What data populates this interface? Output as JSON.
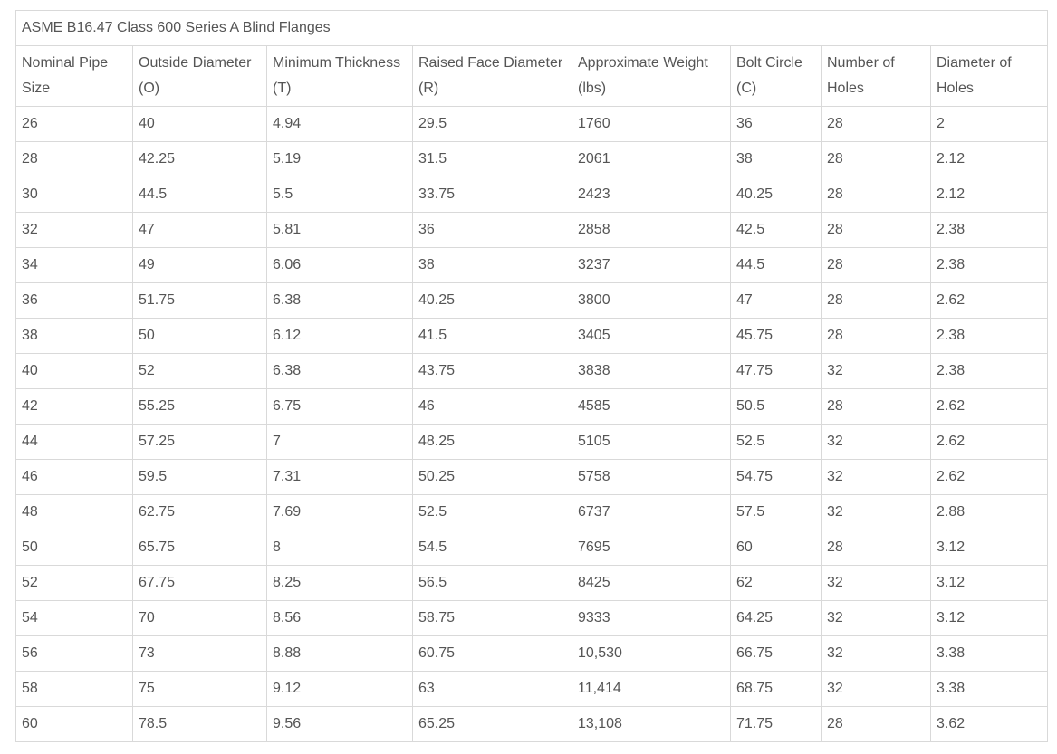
{
  "table": {
    "title": "ASME B16.47 Class 600 Series A Blind Flanges",
    "headers": [
      {
        "line1": "Nominal Pipe",
        "line2": "Size"
      },
      {
        "line1": "Outside Diameter",
        "line2": "(O)"
      },
      {
        "line1": "Minimum Thickness",
        "line2": "(T)"
      },
      {
        "line1": "Raised Face Diameter",
        "line2": "(R)"
      },
      {
        "line1": "Approximate Weight",
        "line2": "(lbs)"
      },
      {
        "line1": "Bolt Circle",
        "line2": "(C)"
      },
      {
        "line1": "Number of",
        "line2": "Holes"
      },
      {
        "line1": "Diameter of",
        "line2": "Holes"
      }
    ],
    "rows": [
      [
        "26",
        "40",
        "4.94",
        "29.5",
        "1760",
        "36",
        "28",
        "2"
      ],
      [
        "28",
        "42.25",
        "5.19",
        "31.5",
        "2061",
        "38",
        "28",
        "2.12"
      ],
      [
        "30",
        "44.5",
        "5.5",
        "33.75",
        "2423",
        "40.25",
        "28",
        "2.12"
      ],
      [
        "32",
        "47",
        "5.81",
        "36",
        "2858",
        "42.5",
        "28",
        "2.38"
      ],
      [
        "34",
        "49",
        "6.06",
        "38",
        "3237",
        "44.5",
        "28",
        "2.38"
      ],
      [
        "36",
        "51.75",
        "6.38",
        "40.25",
        "3800",
        "47",
        "28",
        "2.62"
      ],
      [
        "38",
        "50",
        "6.12",
        "41.5",
        "3405",
        "45.75",
        "28",
        "2.38"
      ],
      [
        "40",
        "52",
        "6.38",
        "43.75",
        "3838",
        "47.75",
        "32",
        "2.38"
      ],
      [
        "42",
        "55.25",
        "6.75",
        "46",
        "4585",
        "50.5",
        "28",
        "2.62"
      ],
      [
        "44",
        "57.25",
        "7",
        "48.25",
        "5105",
        "52.5",
        "32",
        "2.62"
      ],
      [
        "46",
        "59.5",
        "7.31",
        "50.25",
        "5758",
        "54.75",
        "32",
        "2.62"
      ],
      [
        "48",
        "62.75",
        "7.69",
        "52.5",
        "6737",
        "57.5",
        "32",
        "2.88"
      ],
      [
        "50",
        "65.75",
        "8",
        "54.5",
        "7695",
        "60",
        "28",
        "3.12"
      ],
      [
        "52",
        "67.75",
        "8.25",
        "56.5",
        "8425",
        "62",
        "32",
        "3.12"
      ],
      [
        "54",
        "70",
        "8.56",
        "58.75",
        "9333",
        "64.25",
        "32",
        "3.12"
      ],
      [
        "56",
        "73",
        "8.88",
        "60.75",
        "10,530",
        "66.75",
        "32",
        "3.38"
      ],
      [
        "58",
        "75",
        "9.12",
        "63",
        "11,414",
        "68.75",
        "32",
        "3.38"
      ],
      [
        "60",
        "78.5",
        "9.56",
        "65.25",
        "13,108",
        "71.75",
        "28",
        "3.62"
      ]
    ]
  }
}
